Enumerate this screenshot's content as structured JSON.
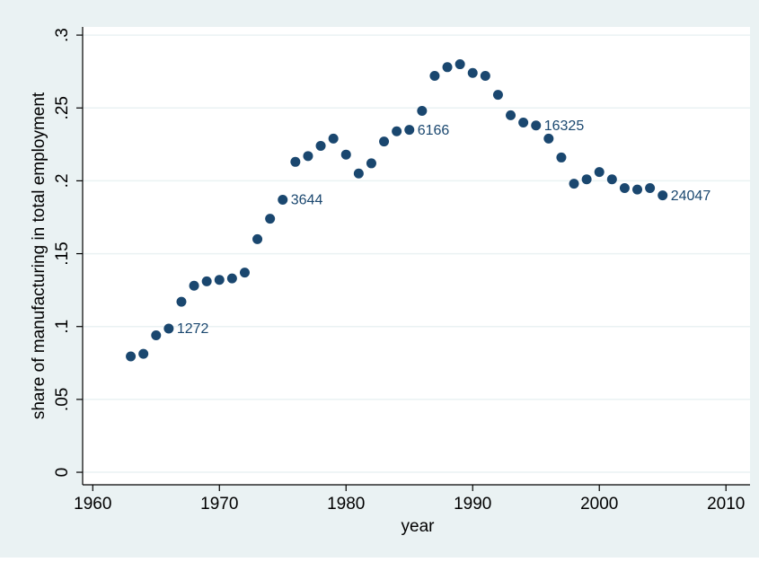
{
  "chart_data": {
    "type": "scatter",
    "x_label": "year",
    "y_label": "share of manufacturing in total employment",
    "color": "#1a476f",
    "grid": true,
    "xlim": [
      1959.2,
      2011.9
    ],
    "ylim": [
      -0.0086,
      0.3056
    ],
    "xticks": [
      1960,
      1970,
      1980,
      1990,
      2000,
      2010
    ],
    "yticks": [
      0,
      {
        "value": 0.05,
        "label": ".05"
      },
      {
        "value": 0.1,
        "label": ".1"
      },
      {
        "value": 0.15,
        "label": ".15"
      },
      {
        "value": 0.2,
        "label": ".2"
      },
      {
        "value": 0.25,
        "label": ".25"
      },
      {
        "value": 0.3,
        "label": ".3"
      }
    ],
    "x": [
      1963,
      1964,
      1965,
      1966,
      1967,
      1968,
      1969,
      1970,
      1971,
      1972,
      1973,
      1974,
      1975,
      1976,
      1977,
      1978,
      1979,
      1980,
      1981,
      1982,
      1983,
      1984,
      1985,
      1986,
      1987,
      1988,
      1989,
      1990,
      1991,
      1992,
      1993,
      1994,
      1995,
      1996,
      1997,
      1998,
      1999,
      2000,
      2001,
      2002,
      2003,
      2004,
      2005
    ],
    "values": [
      0.0795,
      0.0813,
      0.094,
      0.0986,
      0.117,
      0.128,
      0.131,
      0.132,
      0.133,
      0.137,
      0.16,
      0.174,
      0.187,
      0.213,
      0.217,
      0.224,
      0.229,
      0.218,
      0.205,
      0.212,
      0.227,
      0.234,
      0.235,
      0.248,
      0.272,
      0.278,
      0.28,
      0.274,
      0.272,
      0.259,
      0.245,
      0.24,
      0.238,
      0.229,
      0.216,
      0.198,
      0.201,
      0.206,
      0.201,
      0.195,
      0.194,
      0.195,
      0.19
    ],
    "marker_labels": [
      null,
      null,
      null,
      "1272",
      null,
      null,
      null,
      null,
      null,
      null,
      null,
      null,
      "3644",
      null,
      null,
      null,
      null,
      null,
      null,
      null,
      null,
      null,
      "6166",
      null,
      null,
      null,
      null,
      null,
      null,
      null,
      null,
      null,
      "16325",
      null,
      null,
      null,
      null,
      null,
      null,
      null,
      null,
      null,
      "24047"
    ]
  }
}
